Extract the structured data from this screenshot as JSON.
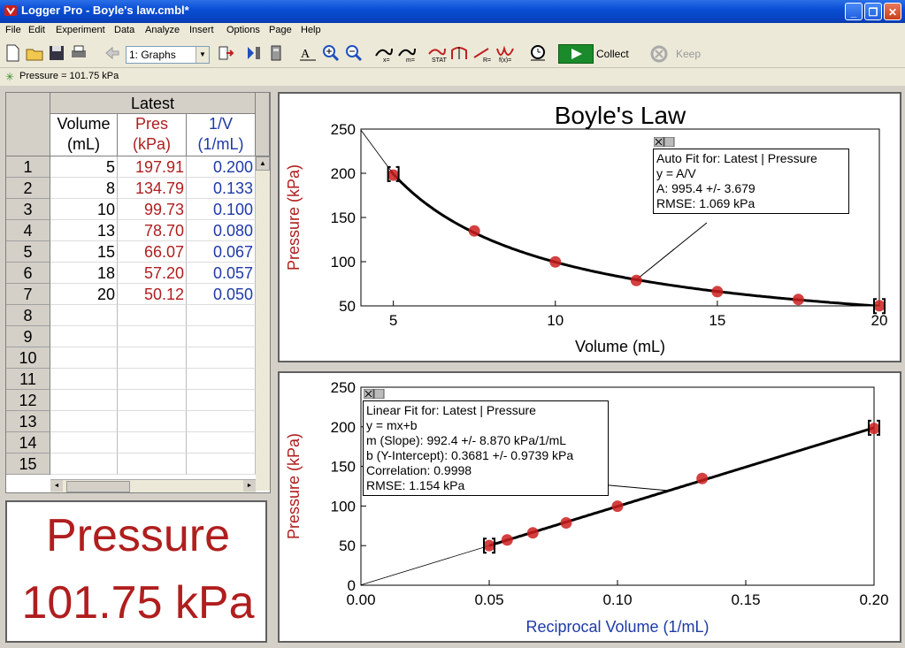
{
  "window": {
    "title": "Logger Pro - Boyle's law.cmbl*"
  },
  "menu": [
    "File",
    "Edit",
    "Experiment",
    "Data",
    "Analyze",
    "Insert",
    "Options",
    "Page",
    "Help"
  ],
  "toolbar": {
    "page_selector": "1: Graphs",
    "collect_label": "Collect",
    "keep_label": "Keep"
  },
  "meter_strip": {
    "text": "Pressure = 101.75 kPa"
  },
  "table": {
    "group_header": "Latest",
    "columns": [
      {
        "name": "Volume",
        "unit": "(mL)",
        "color": "#000000"
      },
      {
        "name": "Pres",
        "unit": "(kPa)",
        "color": "#b01e1e"
      },
      {
        "name": "1/V",
        "unit": "(1/mL)",
        "color": "#1e3aa8"
      }
    ],
    "row_numbers": [
      "1",
      "2",
      "3",
      "4",
      "5",
      "6",
      "7",
      "8",
      "9",
      "10",
      "11",
      "12",
      "13",
      "14",
      "15"
    ],
    "rows": [
      [
        "5",
        "197.91",
        "0.200"
      ],
      [
        "8",
        "134.79",
        "0.133"
      ],
      [
        "10",
        "99.73",
        "0.100"
      ],
      [
        "13",
        "78.70",
        "0.080"
      ],
      [
        "15",
        "66.07",
        "0.067"
      ],
      [
        "18",
        "57.20",
        "0.057"
      ],
      [
        "20",
        "50.12",
        "0.050"
      ]
    ]
  },
  "meter": {
    "name": "Pressure",
    "value": "101.75 kPa"
  },
  "colors": {
    "data_red": "#b01e1e",
    "axis_blue": "#1e3aa8",
    "data_point": "#cc1e1e"
  },
  "chart_data": [
    {
      "type": "scatter",
      "title": "Boyle's Law",
      "xlabel": "Volume (mL)",
      "ylabel": "Pressure (kPa)",
      "xlim": [
        4,
        20
      ],
      "ylim": [
        50,
        250
      ],
      "xticks": [
        5,
        10,
        15,
        20
      ],
      "yticks": [
        50,
        100,
        150,
        200,
        250
      ],
      "series": [
        {
          "x": [
            5,
            7.5,
            10,
            12.5,
            15,
            17.5,
            20
          ],
          "y": [
            197.91,
            134.79,
            99.73,
            78.7,
            66.07,
            57.2,
            50.12
          ]
        }
      ],
      "fit": {
        "type": "power",
        "A": 995.4
      },
      "fit_box": [
        "Auto Fit for: Latest | Pressure",
        "y = A/V",
        "A: 995.4 +/- 3.679",
        "RMSE: 1.069 kPa"
      ]
    },
    {
      "type": "scatter",
      "title": "",
      "xlabel": "Reciprocal Volume (1/mL)",
      "ylabel": "Pressure (kPa)",
      "xlim": [
        0,
        0.2
      ],
      "ylim": [
        0,
        250
      ],
      "xticks": [
        0.0,
        0.05,
        0.1,
        0.15,
        0.2
      ],
      "yticks": [
        0,
        50,
        100,
        150,
        200,
        250
      ],
      "series": [
        {
          "x": [
            0.2,
            0.133,
            0.1,
            0.08,
            0.067,
            0.057,
            0.05
          ],
          "y": [
            197.91,
            134.79,
            99.73,
            78.7,
            66.07,
            57.2,
            50.12
          ]
        }
      ],
      "fit": {
        "type": "linear",
        "m": 992.4,
        "b": 0.3681
      },
      "fit_box": [
        "Linear Fit for: Latest | Pressure",
        "y = mx+b",
        "m (Slope): 992.4 +/- 8.870 kPa/1/mL",
        "b (Y-Intercept): 0.3681 +/- 0.9739 kPa",
        "Correlation: 0.9998",
        "RMSE: 1.154 kPa"
      ]
    }
  ]
}
